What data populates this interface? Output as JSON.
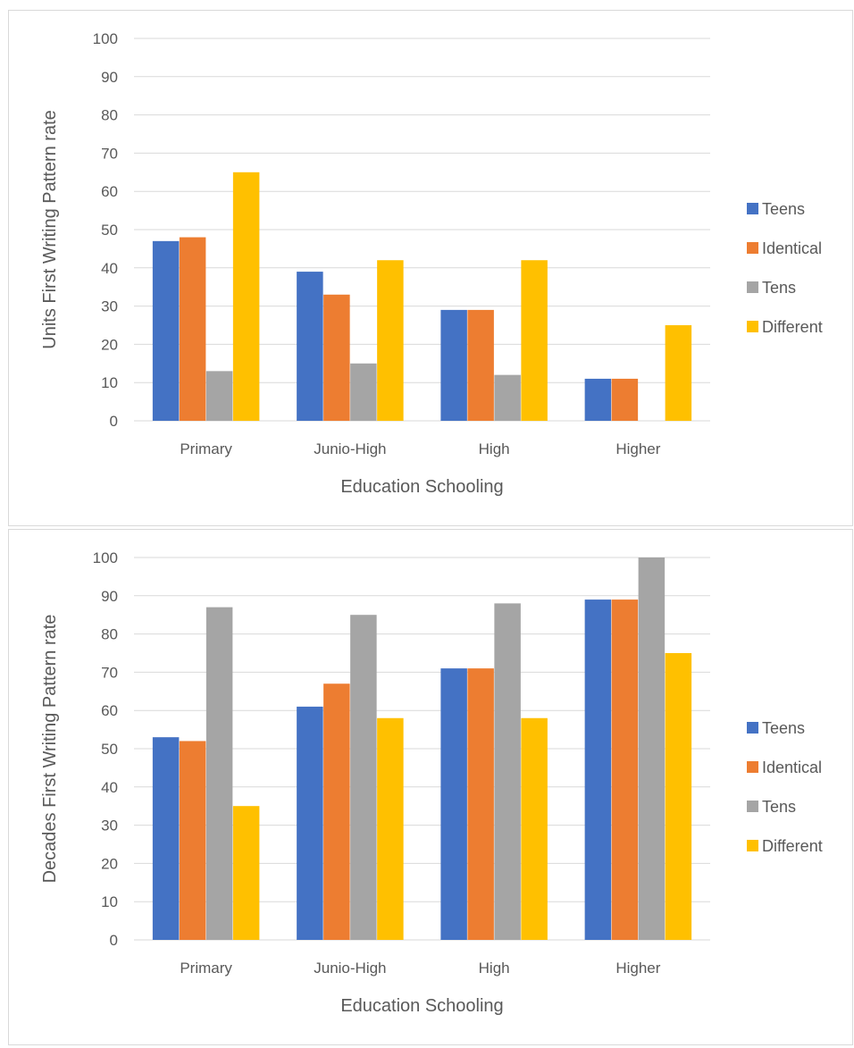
{
  "chart_data": [
    {
      "type": "bar",
      "title": "",
      "xlabel": "Education Schooling",
      "ylabel": "Units First Writing Pattern rate",
      "ylim": [
        0,
        100
      ],
      "yticks": [
        0,
        10,
        20,
        30,
        40,
        50,
        60,
        70,
        80,
        90,
        100
      ],
      "grid": true,
      "legend_position": "right",
      "categories": [
        "Primary",
        "Junio-High",
        "High",
        "Higher"
      ],
      "series": [
        {
          "name": "Teens",
          "color": "#4472c4",
          "values": [
            47,
            39,
            29,
            11
          ]
        },
        {
          "name": "Identical",
          "color": "#ed7d31",
          "values": [
            48,
            33,
            29,
            11
          ]
        },
        {
          "name": "Tens",
          "color": "#a5a5a5",
          "values": [
            13,
            15,
            12,
            0
          ]
        },
        {
          "name": "Different",
          "color": "#ffc000",
          "values": [
            65,
            42,
            42,
            25
          ]
        }
      ]
    },
    {
      "type": "bar",
      "title": "",
      "xlabel": "Education Schooling",
      "ylabel": "Decades First Writing Pattern rate",
      "ylim": [
        0,
        100
      ],
      "yticks": [
        0,
        10,
        20,
        30,
        40,
        50,
        60,
        70,
        80,
        90,
        100
      ],
      "grid": true,
      "legend_position": "right",
      "categories": [
        "Primary",
        "Junio-High",
        "High",
        "Higher"
      ],
      "series": [
        {
          "name": "Teens",
          "color": "#4472c4",
          "values": [
            53,
            61,
            71,
            89
          ]
        },
        {
          "name": "Identical",
          "color": "#ed7d31",
          "values": [
            52,
            67,
            71,
            89
          ]
        },
        {
          "name": "Tens",
          "color": "#a5a5a5",
          "values": [
            87,
            85,
            88,
            100
          ]
        },
        {
          "name": "Different",
          "color": "#ffc000",
          "values": [
            35,
            58,
            58,
            75
          ]
        }
      ]
    }
  ]
}
